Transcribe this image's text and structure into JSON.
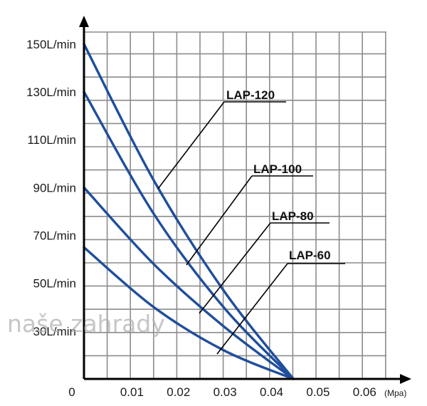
{
  "chart_data": {
    "type": "line",
    "xlabel": "(Mpa)",
    "ylabel": "",
    "origin_label": "0",
    "xlim": [
      0,
      0.065
    ],
    "ylim": [
      10,
      155
    ],
    "x_ticks": [
      0.01,
      0.02,
      0.03,
      0.04,
      0.05,
      0.06
    ],
    "x_tick_labels": [
      "0.01",
      "0.02",
      "0.03",
      "0.04",
      "0.05",
      "0.06"
    ],
    "y_ticks": [
      30,
      50,
      70,
      90,
      110,
      130,
      150
    ],
    "y_tick_labels": [
      "30L/min",
      "50L/min",
      "70L/min",
      "90L/min",
      "110L/min",
      "130L/min",
      "150L/min"
    ],
    "grid": true,
    "legend": "annotations with leader lines",
    "series": [
      {
        "name": "LAP-120",
        "color": "#1f4e9c",
        "x": [
          0,
          0.015,
          0.03,
          0.045
        ],
        "y": [
          150,
          93,
          47,
          10
        ]
      },
      {
        "name": "LAP-100",
        "color": "#1f4e9c",
        "x": [
          0,
          0.015,
          0.03,
          0.045
        ],
        "y": [
          130,
          79,
          40,
          10
        ]
      },
      {
        "name": "LAP-80",
        "color": "#1f4e9c",
        "x": [
          0,
          0.015,
          0.03,
          0.045
        ],
        "y": [
          90,
          58,
          32,
          10
        ]
      },
      {
        "name": "LAP-60",
        "color": "#1f4e9c",
        "x": [
          0,
          0.015,
          0.03,
          0.045
        ],
        "y": [
          65,
          40,
          22,
          10
        ]
      }
    ]
  },
  "watermark": "naše zahrady",
  "colors": {
    "grid": "#8c8c8c",
    "axis": "#000000",
    "line": "#1f4e9c"
  }
}
